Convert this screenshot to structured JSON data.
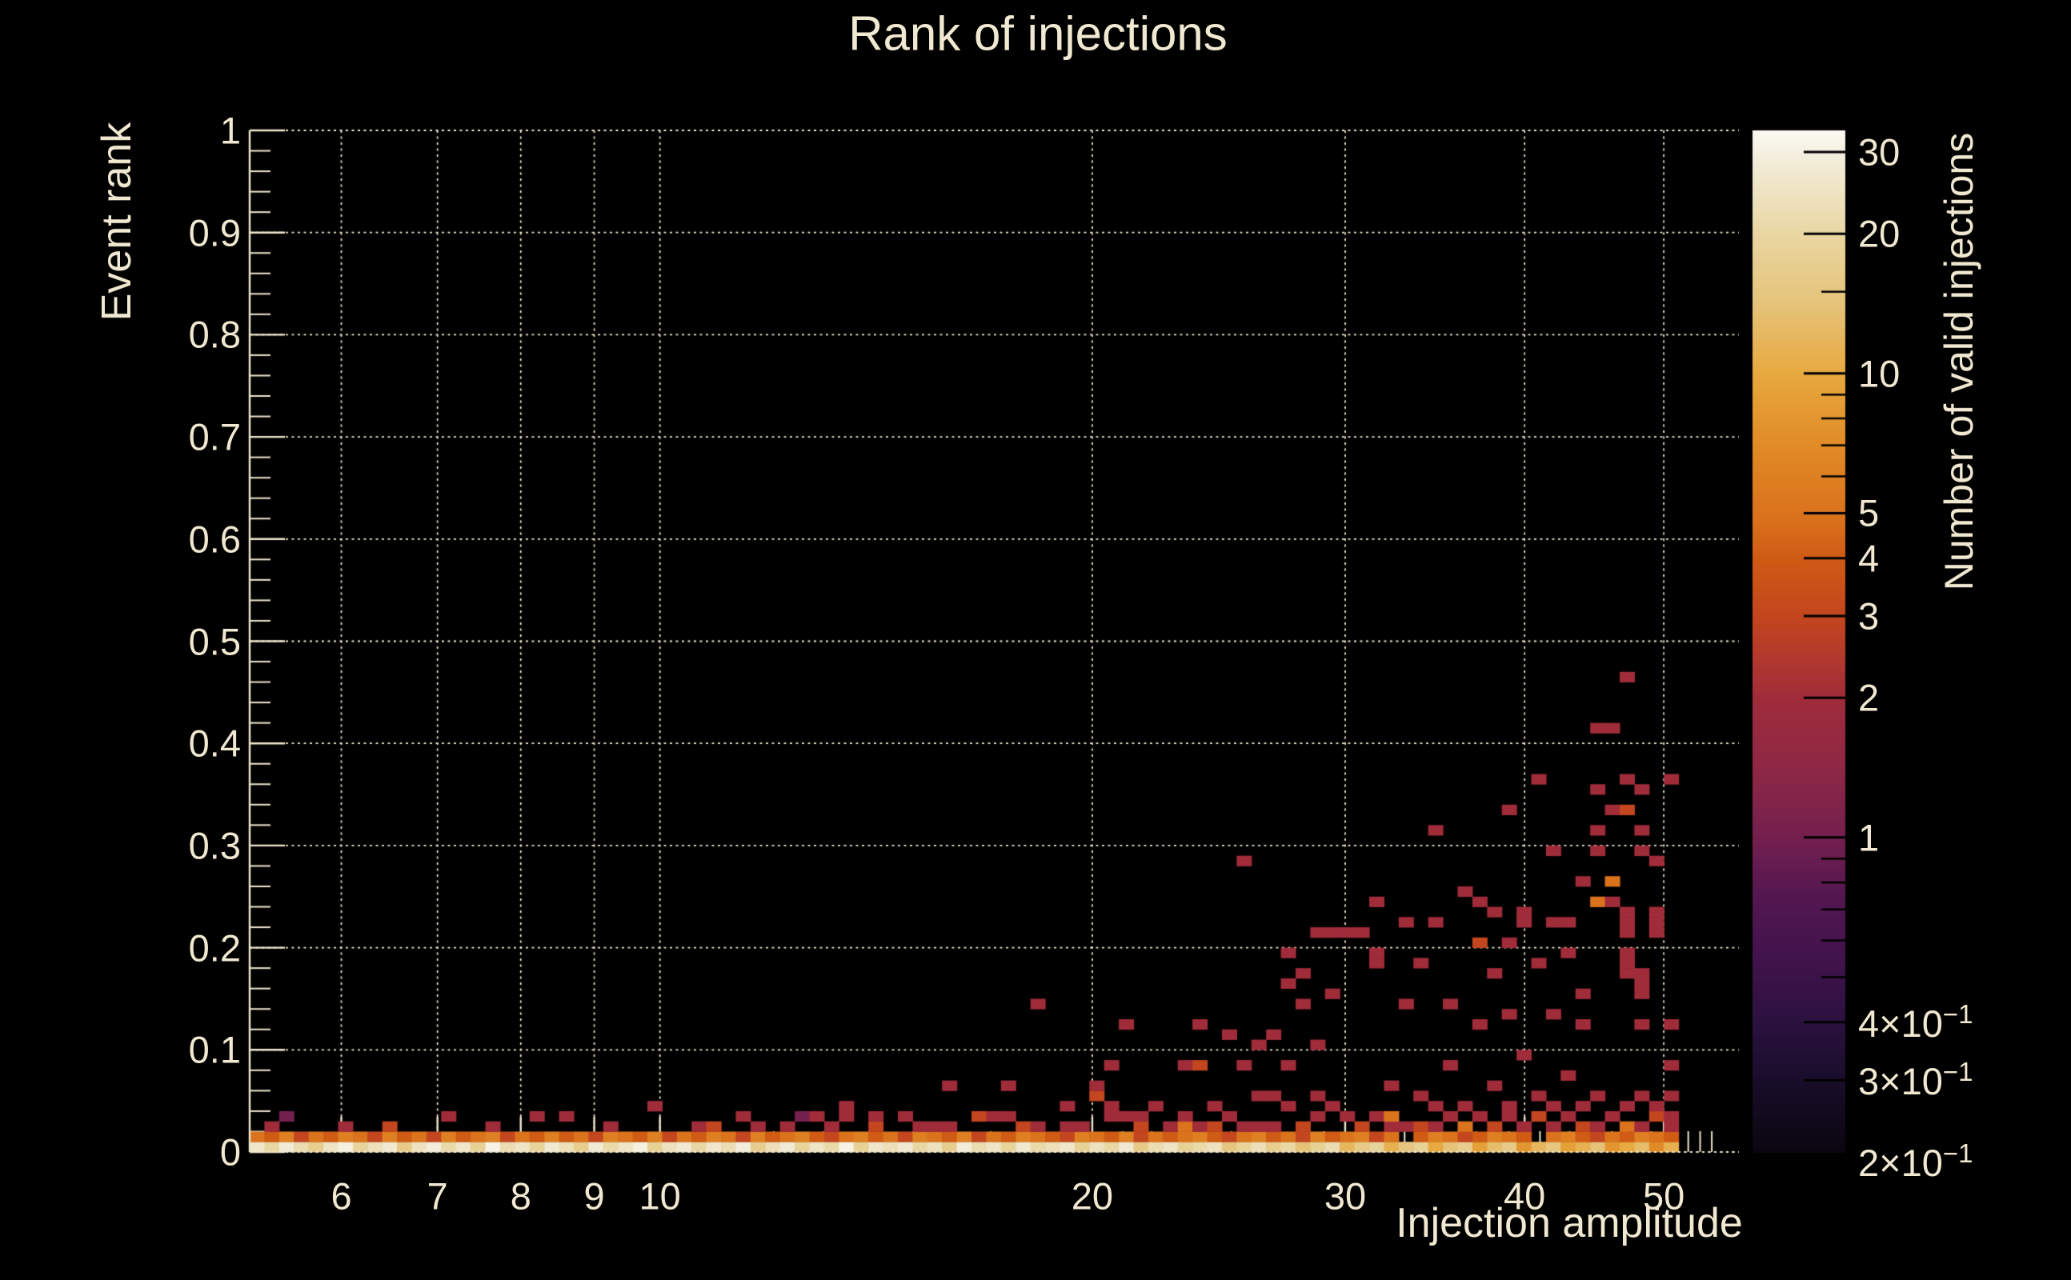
{
  "colors": {
    "background": "#000000",
    "foreground": "#f0e8d0",
    "tick_on_colorbar": "#000000"
  },
  "chart_data": {
    "type": "heatmap",
    "title": "Rank of injections",
    "xlabel": "Injection amplitude",
    "ylabel": "Event rank",
    "zlabel": "Number of valid injections",
    "x_scale": "log",
    "z_scale": "log",
    "xlim": [
      5.18,
      56.4
    ],
    "ylim": [
      0,
      1
    ],
    "zlim": [
      0.21,
      33.4
    ],
    "grid": true,
    "x_major_ticks": [
      6,
      7,
      8,
      9,
      10,
      20,
      30,
      40,
      50
    ],
    "x_major_tick_labels": [
      "6",
      "7",
      "8",
      "9",
      "10",
      "20",
      "30",
      "40",
      "50"
    ],
    "x_minor_ticks": [
      11,
      12,
      13,
      14,
      15,
      16,
      17,
      18,
      19,
      21,
      22,
      23,
      24,
      25,
      26,
      27,
      28,
      29,
      31,
      32,
      33,
      34,
      35,
      36,
      37,
      38,
      39,
      41,
      42,
      43,
      44,
      45,
      46,
      47,
      48,
      49,
      51,
      52,
      53,
      54
    ],
    "y_major_ticks": [
      0,
      0.1,
      0.2,
      0.3,
      0.4,
      0.5,
      0.6,
      0.7,
      0.8,
      0.9,
      1
    ],
    "y_major_tick_labels": [
      "0",
      "0.1",
      "0.2",
      "0.3",
      "0.4",
      "0.5",
      "0.6",
      "0.7",
      "0.8",
      "0.9",
      "1"
    ],
    "y_minor_step": 0.02,
    "colorbar_labeled_ticks": [
      {
        "value": 30,
        "text": "30"
      },
      {
        "value": 20,
        "text": "20"
      },
      {
        "value": 10,
        "text": "10"
      },
      {
        "value": 5,
        "text": "5"
      },
      {
        "value": 4,
        "text": "4"
      },
      {
        "value": 3,
        "text": "3"
      },
      {
        "value": 2,
        "text": "2"
      },
      {
        "value": 1,
        "text": "1"
      },
      {
        "value": 0.4,
        "text": "4×10",
        "sup": "−1"
      },
      {
        "value": 0.3,
        "text": "3×10",
        "sup": "−1"
      },
      {
        "value": 0.2,
        "text": "2×10",
        "sup": "−1"
      }
    ],
    "colorbar_minor_ticks": [
      15,
      9,
      8,
      7,
      6,
      0.9,
      0.8,
      0.7,
      0.6,
      0.5
    ],
    "colormap": [
      [
        0.0,
        "#0a060f"
      ],
      [
        0.07,
        "#190d2a"
      ],
      [
        0.13,
        "#2c1240"
      ],
      [
        0.2,
        "#45134e"
      ],
      [
        0.25,
        "#531750"
      ],
      [
        0.31,
        "#75204e"
      ],
      [
        0.38,
        "#8f2844"
      ],
      [
        0.44,
        "#9e2b3c"
      ],
      [
        0.52,
        "#c24420"
      ],
      [
        0.58,
        "#cf5a14"
      ],
      [
        0.62,
        "#da711c"
      ],
      [
        0.69,
        "#e18a26"
      ],
      [
        0.76,
        "#e7a83e"
      ],
      [
        0.83,
        "#e6c379"
      ],
      [
        0.89,
        "#e8d49c"
      ],
      [
        0.97,
        "#f2ecd9"
      ],
      [
        1.0,
        "#fbf9f2"
      ]
    ],
    "heatmap": {
      "n_cols": 97,
      "n_rows": 100,
      "amp_min": 5.18,
      "amp_max": 51.2,
      "row0": [
        26,
        20,
        28,
        22,
        17,
        25,
        30,
        19,
        23,
        27,
        16,
        24,
        29,
        21,
        26,
        18,
        31,
        22,
        25,
        19,
        27,
        23,
        17,
        28,
        21,
        25,
        30,
        18,
        24,
        27,
        20,
        26,
        22,
        29,
        17,
        23,
        28,
        19,
        25,
        21,
        31,
        18,
        26,
        23,
        27,
        20,
        24,
        17,
        29,
        22,
        25,
        19,
        27,
        21,
        23,
        26,
        18,
        24,
        20,
        27,
        16,
        22,
        25,
        18,
        21,
        24,
        15,
        19,
        23,
        17,
        20,
        14,
        18,
        22,
        12,
        16,
        19,
        11,
        15,
        18,
        10,
        14,
        17,
        9,
        13,
        16,
        8,
        12,
        15,
        9,
        11,
        14,
        8,
        10,
        13,
        7,
        11
      ],
      "row1": [
        5,
        4,
        6,
        3,
        5,
        4,
        6,
        5,
        3,
        6,
        4,
        5,
        3,
        6,
        4,
        5,
        6,
        3,
        5,
        4,
        6,
        4,
        5,
        3,
        6,
        5,
        4,
        6,
        3,
        5,
        4,
        6,
        5,
        3,
        6,
        4,
        5,
        6,
        4,
        3,
        5,
        6,
        4,
        5,
        3,
        6,
        5,
        4,
        6,
        3,
        5,
        4,
        6,
        5,
        4,
        3,
        6,
        5,
        4,
        6,
        3,
        5,
        4,
        5,
        6,
        4,
        3,
        5,
        6,
        4,
        5,
        3,
        6,
        4,
        5,
        6,
        3,
        5,
        0,
        4,
        6,
        5,
        3,
        4,
        6,
        5,
        4,
        0,
        5,
        6,
        4,
        3,
        5,
        4,
        6,
        5,
        4
      ],
      "cells": [
        [
          1,
          2,
          2
        ],
        [
          2,
          3,
          1
        ],
        [
          6,
          2,
          2
        ],
        [
          9,
          2,
          3
        ],
        [
          13,
          3,
          2
        ],
        [
          16,
          2,
          2
        ],
        [
          19,
          3,
          2
        ],
        [
          21,
          3,
          2
        ],
        [
          24,
          2,
          2
        ],
        [
          27,
          4,
          2
        ],
        [
          30,
          2,
          2
        ],
        [
          31,
          2,
          3
        ],
        [
          33,
          3,
          2
        ],
        [
          34,
          2,
          2
        ],
        [
          36,
          2,
          2
        ],
        [
          37,
          3,
          1
        ],
        [
          38,
          3,
          2
        ],
        [
          39,
          2,
          2
        ],
        [
          40,
          3,
          2
        ],
        [
          40,
          4,
          2
        ],
        [
          42,
          2,
          3
        ],
        [
          42,
          3,
          2
        ],
        [
          44,
          3,
          2
        ],
        [
          45,
          2,
          2
        ],
        [
          46,
          2,
          2
        ],
        [
          47,
          2,
          2
        ],
        [
          47,
          6,
          2
        ],
        [
          49,
          3,
          3
        ],
        [
          50,
          3,
          2
        ],
        [
          51,
          3,
          2
        ],
        [
          51,
          6,
          2
        ],
        [
          52,
          2,
          3
        ],
        [
          53,
          2,
          2
        ],
        [
          53,
          14,
          2
        ],
        [
          55,
          2,
          2
        ],
        [
          55,
          4,
          2
        ],
        [
          56,
          2,
          2
        ],
        [
          57,
          5,
          3
        ],
        [
          57,
          6,
          2
        ],
        [
          58,
          3,
          2
        ],
        [
          58,
          4,
          2
        ],
        [
          58,
          8,
          2
        ],
        [
          59,
          3,
          2
        ],
        [
          59,
          12,
          2
        ],
        [
          60,
          2,
          3
        ],
        [
          60,
          3,
          2
        ],
        [
          61,
          4,
          2
        ],
        [
          62,
          2,
          2
        ],
        [
          63,
          2,
          5
        ],
        [
          63,
          3,
          2
        ],
        [
          63,
          8,
          2
        ],
        [
          64,
          2,
          2
        ],
        [
          64,
          8,
          3
        ],
        [
          64,
          12,
          2
        ],
        [
          65,
          2,
          3
        ],
        [
          65,
          4,
          2
        ],
        [
          66,
          3,
          2
        ],
        [
          66,
          11,
          2
        ],
        [
          67,
          2,
          2
        ],
        [
          67,
          8,
          2
        ],
        [
          67,
          28,
          2
        ],
        [
          68,
          2,
          2
        ],
        [
          68,
          5,
          2
        ],
        [
          68,
          10,
          2
        ],
        [
          69,
          2,
          2
        ],
        [
          69,
          5,
          2
        ],
        [
          69,
          11,
          2
        ],
        [
          70,
          4,
          2
        ],
        [
          70,
          8,
          2
        ],
        [
          70,
          16,
          2
        ],
        [
          70,
          19,
          2
        ],
        [
          71,
          2,
          3
        ],
        [
          71,
          14,
          2
        ],
        [
          71,
          17,
          2
        ],
        [
          72,
          3,
          2
        ],
        [
          72,
          5,
          2
        ],
        [
          72,
          10,
          2
        ],
        [
          72,
          21,
          2
        ],
        [
          73,
          4,
          2
        ],
        [
          73,
          15,
          2
        ],
        [
          73,
          21,
          2
        ],
        [
          74,
          3,
          2
        ],
        [
          74,
          21,
          2
        ],
        [
          75,
          2,
          3
        ],
        [
          75,
          21,
          2
        ],
        [
          76,
          3,
          2
        ],
        [
          76,
          18,
          2
        ],
        [
          76,
          19,
          2
        ],
        [
          76,
          24,
          2
        ],
        [
          77,
          2,
          2
        ],
        [
          77,
          3,
          5
        ],
        [
          77,
          6,
          2
        ],
        [
          78,
          2,
          2
        ],
        [
          78,
          14,
          2
        ],
        [
          78,
          22,
          2
        ],
        [
          79,
          2,
          3
        ],
        [
          79,
          5,
          2
        ],
        [
          79,
          18,
          2
        ],
        [
          80,
          2,
          2
        ],
        [
          80,
          4,
          2
        ],
        [
          80,
          22,
          2
        ],
        [
          80,
          31,
          2
        ],
        [
          81,
          3,
          2
        ],
        [
          81,
          8,
          2
        ],
        [
          81,
          14,
          2
        ],
        [
          82,
          2,
          5
        ],
        [
          82,
          4,
          2
        ],
        [
          82,
          25,
          2
        ],
        [
          83,
          3,
          2
        ],
        [
          83,
          12,
          2
        ],
        [
          83,
          20,
          3
        ],
        [
          83,
          24,
          2
        ],
        [
          84,
          2,
          3
        ],
        [
          84,
          6,
          2
        ],
        [
          84,
          17,
          2
        ],
        [
          84,
          23,
          2
        ],
        [
          85,
          3,
          2
        ],
        [
          85,
          4,
          2
        ],
        [
          85,
          13,
          2
        ],
        [
          85,
          20,
          2
        ],
        [
          85,
          33,
          2
        ],
        [
          86,
          2,
          2
        ],
        [
          86,
          9,
          2
        ],
        [
          86,
          22,
          2
        ],
        [
          86,
          23,
          2
        ],
        [
          87,
          3,
          3
        ],
        [
          87,
          5,
          2
        ],
        [
          87,
          18,
          2
        ],
        [
          87,
          36,
          2
        ],
        [
          88,
          2,
          2
        ],
        [
          88,
          4,
          2
        ],
        [
          88,
          13,
          2
        ],
        [
          88,
          22,
          2
        ],
        [
          88,
          29,
          2
        ],
        [
          89,
          3,
          2
        ],
        [
          89,
          7,
          2
        ],
        [
          89,
          19,
          2
        ],
        [
          89,
          22,
          2
        ],
        [
          90,
          2,
          3
        ],
        [
          90,
          4,
          2
        ],
        [
          90,
          12,
          2
        ],
        [
          90,
          15,
          2
        ],
        [
          90,
          26,
          2
        ],
        [
          91,
          2,
          2
        ],
        [
          91,
          5,
          2
        ],
        [
          91,
          24,
          5
        ],
        [
          91,
          29,
          2
        ],
        [
          91,
          31,
          2
        ],
        [
          91,
          35,
          2
        ],
        [
          91,
          41,
          2
        ],
        [
          92,
          3,
          2
        ],
        [
          92,
          24,
          2
        ],
        [
          92,
          26,
          5
        ],
        [
          92,
          33,
          2
        ],
        [
          92,
          41,
          2
        ],
        [
          93,
          2,
          5
        ],
        [
          93,
          4,
          2
        ],
        [
          93,
          17,
          2
        ],
        [
          93,
          18,
          2
        ],
        [
          93,
          19,
          2
        ],
        [
          93,
          21,
          2
        ],
        [
          93,
          22,
          2
        ],
        [
          93,
          23,
          2
        ],
        [
          93,
          33,
          3
        ],
        [
          93,
          36,
          2
        ],
        [
          93,
          46,
          2
        ],
        [
          94,
          2,
          2
        ],
        [
          94,
          5,
          2
        ],
        [
          94,
          12,
          2
        ],
        [
          94,
          15,
          2
        ],
        [
          94,
          16,
          2
        ],
        [
          94,
          17,
          2
        ],
        [
          94,
          29,
          2
        ],
        [
          94,
          31,
          2
        ],
        [
          94,
          35,
          2
        ],
        [
          95,
          3,
          3
        ],
        [
          95,
          4,
          2
        ],
        [
          95,
          21,
          2
        ],
        [
          95,
          22,
          2
        ],
        [
          95,
          23,
          2
        ],
        [
          95,
          28,
          2
        ],
        [
          96,
          2,
          2
        ],
        [
          96,
          3,
          2
        ],
        [
          96,
          5,
          2
        ],
        [
          96,
          8,
          2
        ],
        [
          96,
          12,
          2
        ],
        [
          96,
          36,
          2
        ]
      ]
    }
  }
}
